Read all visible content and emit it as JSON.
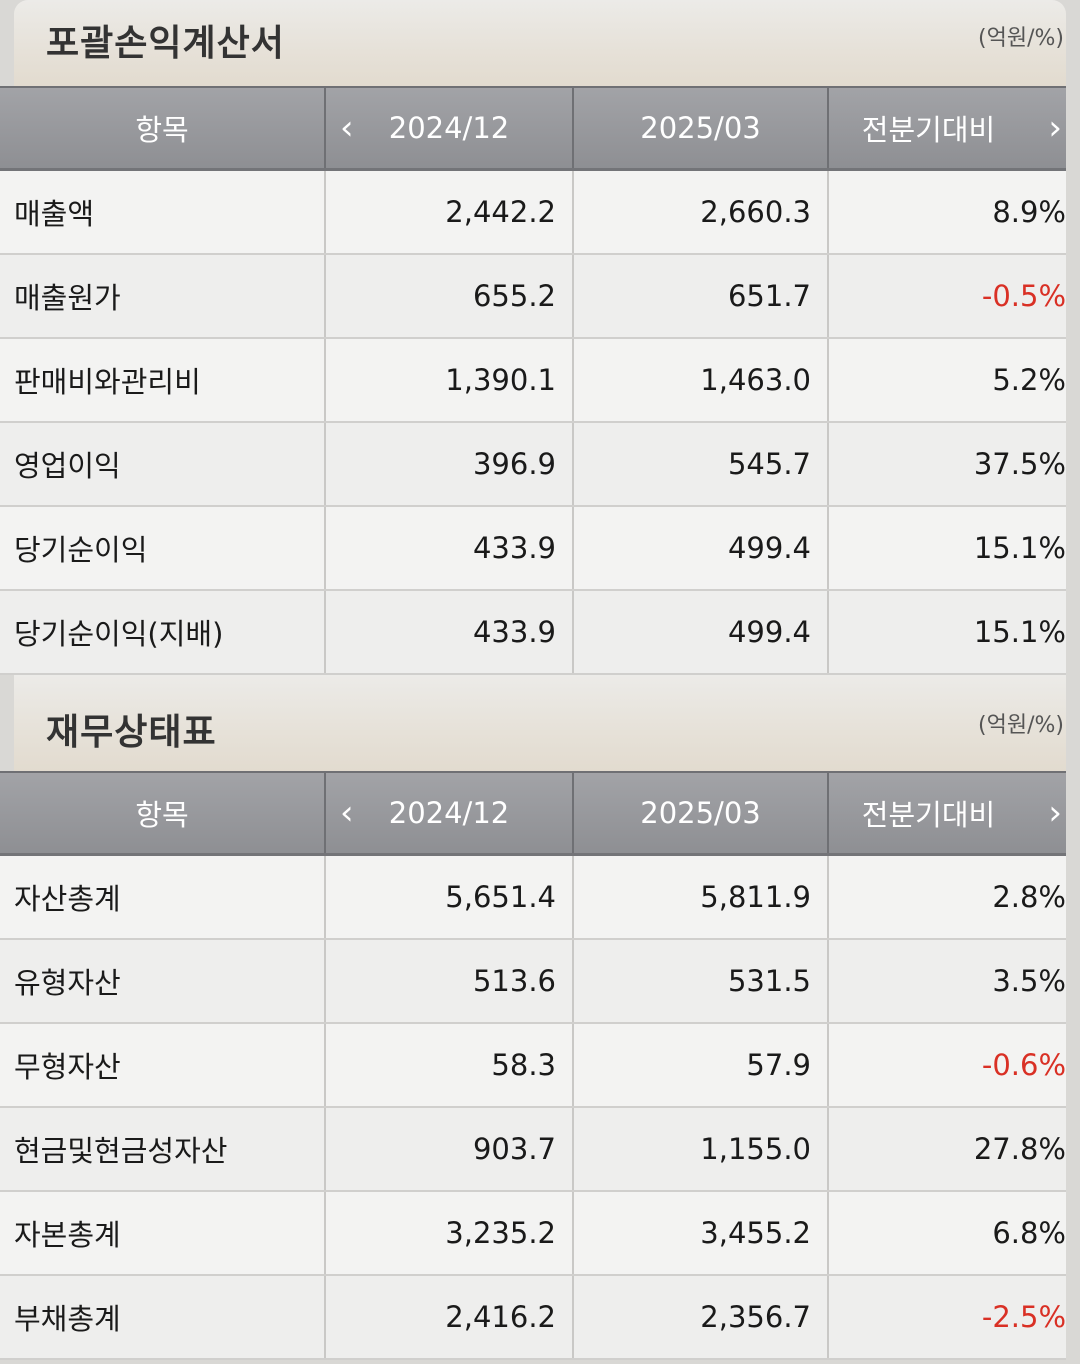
{
  "income": {
    "title": "포괄손익계산서",
    "unit": "(억원/%)",
    "headers": [
      "항목",
      "2024/12",
      "2025/03",
      "전분기대비"
    ],
    "rows": [
      {
        "label": "매출액",
        "v1": "2,442.2",
        "v2": "2,660.3",
        "chg": "8.9%"
      },
      {
        "label": "매출원가",
        "v1": "655.2",
        "v2": "651.7",
        "chg": "-0.5%"
      },
      {
        "label": "판매비와관리비",
        "v1": "1,390.1",
        "v2": "1,463.0",
        "chg": "5.2%"
      },
      {
        "label": "영업이익",
        "v1": "396.9",
        "v2": "545.7",
        "chg": "37.5%"
      },
      {
        "label": "당기순이익",
        "v1": "433.9",
        "v2": "499.4",
        "chg": "15.1%"
      },
      {
        "label": "당기순이익(지배)",
        "v1": "433.9",
        "v2": "499.4",
        "chg": "15.1%"
      }
    ]
  },
  "balance": {
    "title": "재무상태표",
    "unit": "(억원/%)",
    "headers": [
      "항목",
      "2024/12",
      "2025/03",
      "전분기대비"
    ],
    "rows": [
      {
        "label": "자산총계",
        "v1": "5,651.4",
        "v2": "5,811.9",
        "chg": "2.8%"
      },
      {
        "label": "유형자산",
        "v1": "513.6",
        "v2": "531.5",
        "chg": "3.5%"
      },
      {
        "label": "무형자산",
        "v1": "58.3",
        "v2": "57.9",
        "chg": "-0.6%"
      },
      {
        "label": "현금및현금성자산",
        "v1": "903.7",
        "v2": "1,155.0",
        "chg": "27.8%"
      },
      {
        "label": "자본총계",
        "v1": "3,235.2",
        "v2": "3,455.2",
        "chg": "6.8%"
      },
      {
        "label": "부채총계",
        "v1": "2,416.2",
        "v2": "2,356.7",
        "chg": "-2.5%"
      }
    ]
  },
  "colors": {
    "negative": "#d93025",
    "header_bg": "#97989c"
  }
}
